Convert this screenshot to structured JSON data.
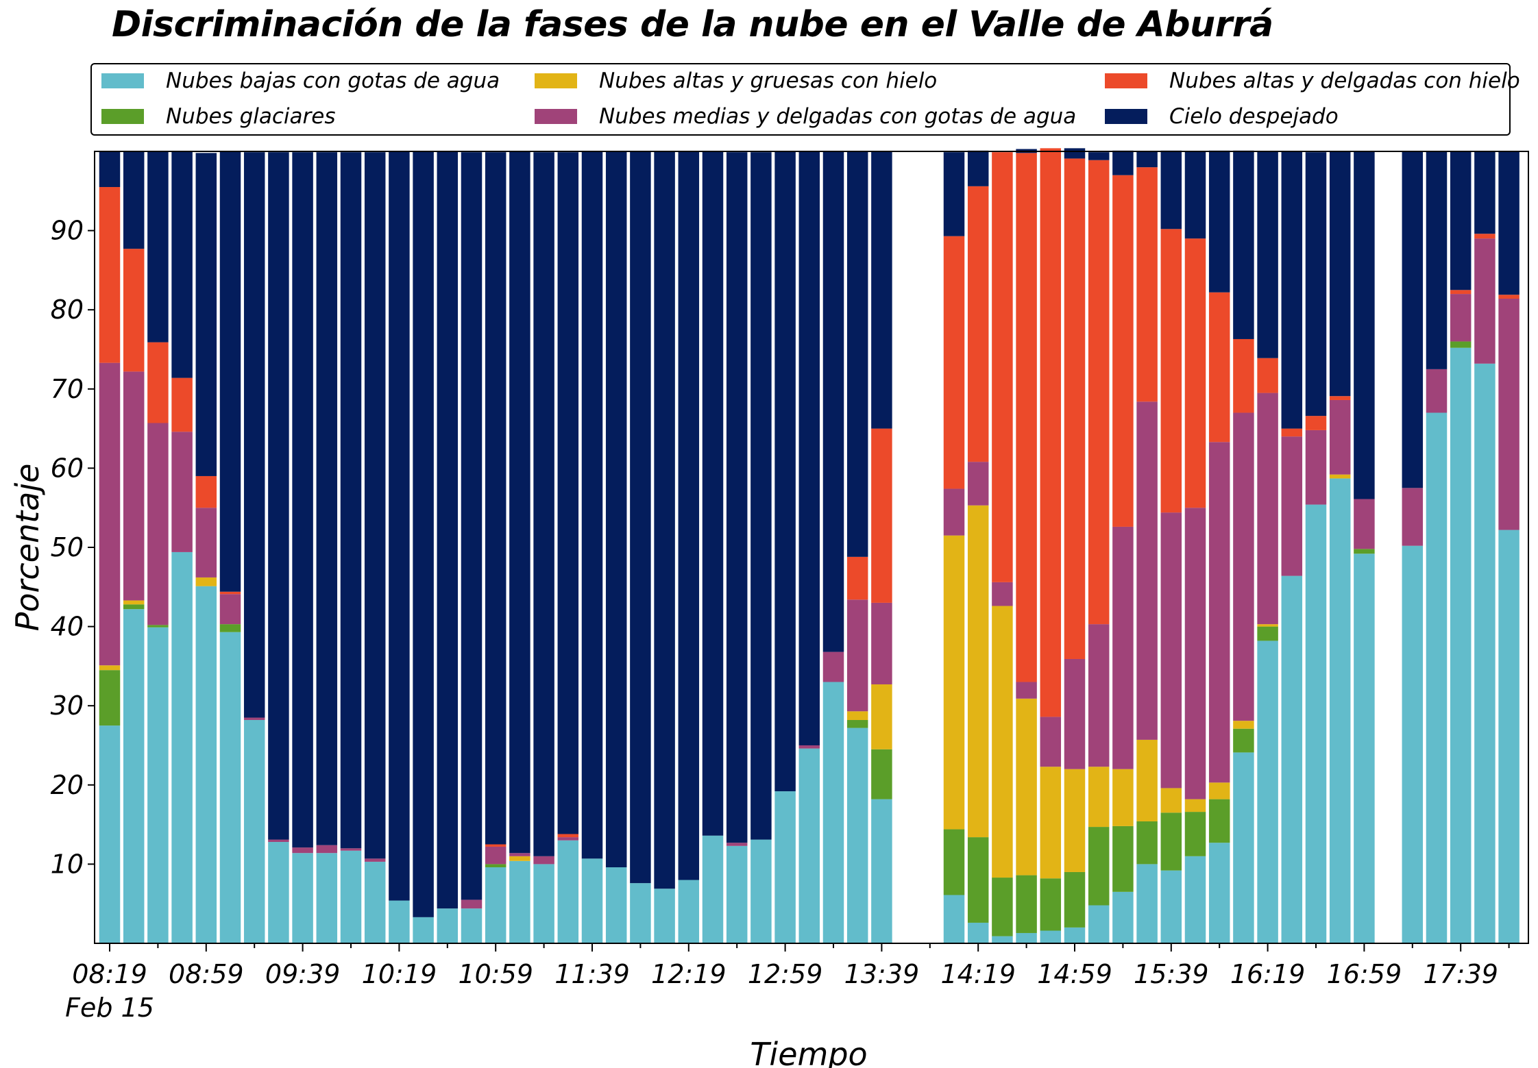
{
  "chart_data": {
    "type": "bar",
    "stacked": true,
    "title": "Discriminación de la fases de la nube en el Valle de Aburrá",
    "xlabel": "Tiempo",
    "ylabel": "Porcentaje",
    "ylim": [
      0,
      100
    ],
    "yticks": [
      10,
      20,
      30,
      40,
      50,
      60,
      70,
      80,
      90
    ],
    "x_start": "08:19",
    "x_step_minutes": 10,
    "x_tick_labels": [
      "08:19",
      "08:59",
      "09:39",
      "10:19",
      "10:59",
      "11:39",
      "12:19",
      "12:59",
      "13:39",
      "14:19",
      "14:59",
      "15:39",
      "16:19",
      "16:59",
      "17:39"
    ],
    "x_date_label": "Feb 15",
    "legend_position": "top",
    "grid": false,
    "series": [
      {
        "name": "Nubes bajas con gotas de agua",
        "color": "#62bccb",
        "values": [
          27.5,
          42.2,
          39.9,
          49.4,
          45.1,
          39.3,
          28.2,
          12.8,
          11.4,
          11.4,
          11.7,
          10.3,
          5.4,
          3.3,
          4.4,
          4.4,
          9.6,
          10.4,
          10.0,
          13.0,
          10.7,
          9.6,
          7.6,
          6.9,
          8.0,
          13.6,
          12.3,
          13.1,
          19.2,
          24.6,
          33.0,
          27.2,
          18.2,
          null,
          null,
          6.1,
          2.6,
          0.9,
          1.3,
          1.6,
          2.0,
          4.8,
          6.5,
          10.0,
          9.2,
          11.0,
          12.7,
          24.1,
          38.2,
          46.4,
          55.4,
          58.7,
          49.2,
          null,
          50.2,
          67.0,
          75.2,
          73.2,
          52.2
        ]
      },
      {
        "name": "Nubes glaciares",
        "color": "#5b9e29",
        "values": [
          7.0,
          0.6,
          0.3,
          0,
          0,
          1.0,
          0,
          0,
          0,
          0,
          0,
          0,
          0,
          0,
          0,
          0,
          0.4,
          0,
          0,
          0,
          0,
          0,
          0,
          0,
          0,
          0,
          0,
          0,
          0,
          0,
          0,
          1.0,
          6.3,
          null,
          null,
          8.3,
          10.8,
          7.4,
          7.3,
          6.6,
          7.0,
          9.9,
          8.3,
          5.4,
          7.3,
          5.6,
          5.5,
          3.0,
          1.8,
          0,
          0,
          0,
          0.6,
          null,
          0,
          0,
          0.8,
          0,
          0
        ]
      },
      {
        "name": "Nubes altas y gruesas con hielo",
        "color": "#e2b416",
        "values": [
          0.6,
          0.5,
          0,
          0,
          1.1,
          0,
          0,
          0,
          0,
          0,
          0,
          0,
          0,
          0,
          0,
          0,
          0,
          0.6,
          0,
          0,
          0,
          0,
          0,
          0,
          0,
          0,
          0,
          0,
          0,
          0,
          0,
          1.1,
          8.2,
          null,
          null,
          37.1,
          41.9,
          34.3,
          22.3,
          14.1,
          13.0,
          7.6,
          7.2,
          10.3,
          3.1,
          1.6,
          2.1,
          1.0,
          0.3,
          0,
          0,
          0.5,
          0,
          null,
          0,
          0,
          0,
          0,
          0
        ]
      },
      {
        "name": "Nubes medias y delgadas con gotas de agua",
        "color": "#a04379",
        "values": [
          38.2,
          28.9,
          25.5,
          15.2,
          8.8,
          3.8,
          0.3,
          0.3,
          0.7,
          1.0,
          0.3,
          0.4,
          0,
          0,
          0,
          1.1,
          2.2,
          0.4,
          1.0,
          0.4,
          0,
          0,
          0,
          0,
          0,
          0,
          0.4,
          0,
          0,
          0.4,
          3.8,
          14.1,
          10.3,
          null,
          null,
          5.9,
          5.5,
          3.0,
          2.1,
          6.3,
          13.9,
          18.0,
          30.6,
          42.7,
          34.8,
          36.8,
          43.0,
          38.9,
          29.2,
          17.6,
          9.4,
          9.4,
          6.3,
          null,
          7.3,
          5.5,
          6.0,
          15.8,
          29.2
        ]
      },
      {
        "name": "Nubes altas y delgadas con hielo",
        "color": "#ec4a2a",
        "values": [
          22.2,
          15.5,
          10.2,
          6.8,
          4.0,
          0.3,
          0,
          0,
          0,
          0,
          0,
          0,
          0,
          0,
          0,
          0,
          0.3,
          0,
          0,
          0.4,
          0,
          0,
          0,
          0,
          0,
          0,
          0,
          0,
          0,
          0,
          0,
          5.4,
          22.0,
          null,
          null,
          31.9,
          34.8,
          54.3,
          66.8,
          71.8,
          63.2,
          58.6,
          44.4,
          29.6,
          35.8,
          34.0,
          18.9,
          9.3,
          4.4,
          1.0,
          1.8,
          0.5,
          0,
          null,
          0,
          0,
          0.5,
          0.6,
          0.5
        ]
      },
      {
        "name": "Cielo despejado",
        "color": "#041d5c",
        "values": [
          4.5,
          12.3,
          24.1,
          28.6,
          40.8,
          55.6,
          71.4,
          86.8,
          87.8,
          87.5,
          87.9,
          89.2,
          94.6,
          96.7,
          95.6,
          94.4,
          87.4,
          88.6,
          88.9,
          86.1,
          89.3,
          90.4,
          92.4,
          93.1,
          92.0,
          86.4,
          87.2,
          86.8,
          80.8,
          75.0,
          63.2,
          51.2,
          35.0,
          null,
          null,
          10.6,
          4.5,
          0,
          0.5,
          0,
          1.3,
          1.0,
          3.1,
          2.0,
          9.9,
          11.0,
          17.9,
          23.8,
          26.1,
          35.0,
          33.3,
          30.9,
          43.9,
          null,
          42.5,
          27.5,
          17.5,
          10.4,
          18.1
        ]
      }
    ]
  }
}
